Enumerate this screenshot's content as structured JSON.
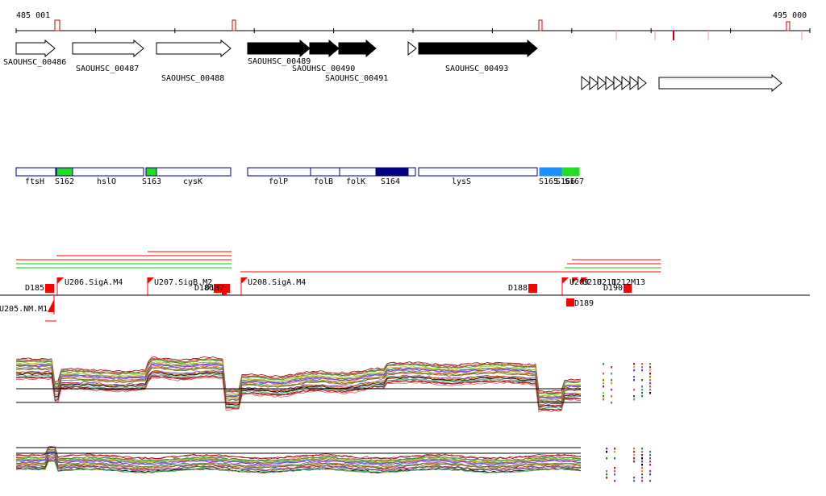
{
  "axis": {
    "start": "485 001",
    "end": "495 000"
  },
  "genes": [
    {
      "name": "SAOUHSC_00486",
      "fill": "#ffffff"
    },
    {
      "name": "SAOUHSC_00487",
      "fill": "#ffffff"
    },
    {
      "name": "SAOUHSC_00488",
      "fill": "#ffffff"
    },
    {
      "name": "SAOUHSC_00489",
      "fill": "#000000"
    },
    {
      "name": "SAOUHSC_00490",
      "fill": "#000000"
    },
    {
      "name": "SAOUHSC_00491",
      "fill": "#000000"
    },
    {
      "name": "",
      "fill": "#ffffff"
    },
    {
      "name": "SAOUHSC_00493",
      "fill": "#000000"
    },
    {
      "name": "",
      "fill": "#ffffff"
    }
  ],
  "annotations": [
    {
      "label": "ftsH",
      "color": "#ffffff"
    },
    {
      "label": "S162",
      "color": "#22dd22"
    },
    {
      "label": "hslO",
      "color": "#ffffff"
    },
    {
      "label": "S163",
      "color": "#22dd22"
    },
    {
      "label": "cysK",
      "color": "#ffffff"
    },
    {
      "label": "folP",
      "color": "#ffffff"
    },
    {
      "label": "folB",
      "color": "#ffffff"
    },
    {
      "label": "folK",
      "color": "#ffffff"
    },
    {
      "label": "S164",
      "color": "#000080"
    },
    {
      "label": "lysS",
      "color": "#ffffff"
    },
    {
      "label": "S165",
      "color": "#1e90ff"
    },
    {
      "label": "S166",
      "color": "#22dd22"
    },
    {
      "label": "S167",
      "color": "#22dd22"
    }
  ],
  "features": [
    {
      "label": "D185"
    },
    {
      "label": "U205.NM.M1"
    },
    {
      "label": "U206.SigA.M4"
    },
    {
      "label": "U207.SigB.M2"
    },
    {
      "label": "D186"
    },
    {
      "label": "D187"
    },
    {
      "label": "U208.SigA.M4"
    },
    {
      "label": "D188"
    },
    {
      "label": "U209"
    },
    {
      "label": "U210"
    },
    {
      "label": "U211"
    },
    {
      "label": "D189"
    },
    {
      "label": "U212"
    },
    {
      "label": "D190"
    },
    {
      "label": "M13"
    }
  ],
  "colors": {
    "axis": "#000000",
    "tick_red": "#cc0000",
    "feature_red": "#ff0000",
    "line_green": "#00cc00",
    "gene_outline": "#000000",
    "annotation_outline": "#000080"
  }
}
